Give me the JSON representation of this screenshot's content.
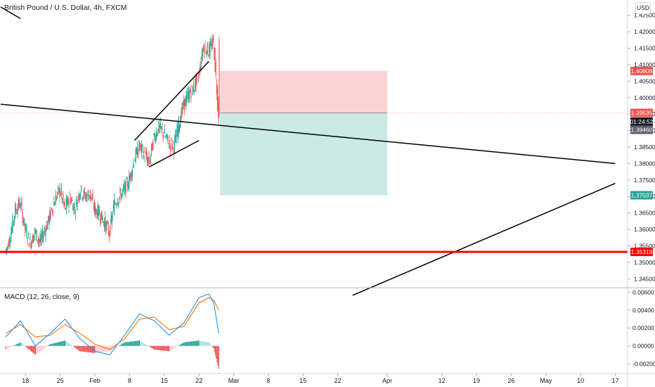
{
  "header": {
    "title": "British Pound / U.S. Dollar, 4h, FXCM",
    "currency_button": "USD",
    "macd_title": "MACD (12, 26, close, 9)"
  },
  "colors": {
    "bull": "#26a69a",
    "bear": "#ef5350",
    "stop_zone": "#fbd3d3",
    "target_zone": "#cbe9e6",
    "support_line": "#ff0000",
    "macd_line": "#2196f3",
    "signal_line": "#ff6d00",
    "entry_badge": "#ef5350",
    "target_badge": "#26a69a",
    "current_badge": "#5d606b",
    "countdown_badge": "#131722"
  },
  "chart_data": [
    {
      "type": "candlestick",
      "title": "British Pound / U.S. Dollar, 4h, FXCM",
      "ylim": [
        1.3425,
        1.4275
      ],
      "y_ticks": [
        "1.34500",
        "1.35000",
        "1.35500",
        "1.36000",
        "1.36500",
        "1.37000",
        "1.37500",
        "1.38000",
        "1.38500",
        "1.39000",
        "1.39500",
        "1.40000",
        "1.40500",
        "1.41000",
        "1.41500",
        "1.42000",
        "1.42500"
      ],
      "y_tick_values": [
        1.345,
        1.35,
        1.355,
        1.36,
        1.365,
        1.37,
        1.375,
        1.38,
        1.385,
        1.39,
        1.395,
        1.4,
        1.405,
        1.41,
        1.415,
        1.42,
        1.425
      ],
      "x_ticks": [
        "18",
        "25",
        "Feb",
        "8",
        "15",
        "22",
        "Mar",
        "8",
        "15",
        "22",
        "Apr",
        "12",
        "19",
        "26",
        "May",
        "10",
        "17"
      ],
      "price_path": [
        [
          "Jan 14",
          1.353
        ],
        [
          "Jan 15",
          1.358
        ],
        [
          "Jan 16",
          1.366
        ],
        [
          "Jan 17",
          1.368
        ],
        [
          "Jan 18",
          1.36
        ],
        [
          "Jan 19",
          1.356
        ],
        [
          "Jan 20",
          1.359
        ],
        [
          "Jan 21",
          1.356
        ],
        [
          "Jan 22",
          1.36
        ],
        [
          "Jan 23",
          1.364
        ],
        [
          "Jan 24",
          1.369
        ],
        [
          "Jan 25",
          1.372
        ],
        [
          "Jan 26",
          1.366
        ],
        [
          "Jan 27",
          1.37
        ],
        [
          "Jan 28",
          1.366
        ],
        [
          "Jan 29",
          1.372
        ],
        [
          "Jan 30",
          1.37
        ],
        [
          "Jan 31",
          1.371
        ],
        [
          "Feb 1",
          1.366
        ],
        [
          "Feb 2",
          1.365
        ],
        [
          "Feb 3",
          1.362
        ],
        [
          "Feb 4",
          1.359
        ],
        [
          "Feb 5",
          1.368
        ],
        [
          "Feb 6",
          1.37
        ],
        [
          "Feb 7",
          1.372
        ],
        [
          "Feb 8",
          1.375
        ],
        [
          "Feb 9",
          1.381
        ],
        [
          "Feb 10",
          1.385
        ],
        [
          "Feb 11",
          1.383
        ],
        [
          "Feb 12",
          1.38
        ],
        [
          "Feb 13",
          1.388
        ],
        [
          "Feb 14",
          1.391
        ],
        [
          "Feb 15",
          1.389
        ],
        [
          "Feb 16",
          1.386
        ],
        [
          "Feb 17",
          1.385
        ],
        [
          "Feb 18",
          1.392
        ],
        [
          "Feb 19",
          1.398
        ],
        [
          "Feb 20",
          1.401
        ],
        [
          "Feb 21",
          1.403
        ],
        [
          "Feb 22",
          1.407
        ],
        [
          "Feb 23",
          1.416
        ],
        [
          "Feb 24",
          1.414
        ],
        [
          "Feb 25",
          1.417
        ],
        [
          "Feb 26",
          1.395
        ]
      ],
      "annotations": {
        "short_position": {
          "entry": 1.39535,
          "stop": 1.40809,
          "target": 1.37037,
          "start": "Feb 26",
          "end": "Apr 1"
        },
        "horizontal_support": 1.35319,
        "price_labels": [
          {
            "text": "1.40809",
            "value": 1.40809,
            "kind": "stop"
          },
          {
            "text": "1.39535",
            "value": 1.39535,
            "kind": "entry"
          },
          {
            "text": "01:24:52",
            "kind": "countdown"
          },
          {
            "text": "1.39460",
            "value": 1.3946,
            "kind": "current"
          },
          {
            "text": "1.37037",
            "value": 1.37037,
            "kind": "target"
          },
          {
            "text": "1.35319",
            "value": 1.35319,
            "kind": "support"
          }
        ],
        "trend_lines": [
          {
            "from": [
              "Jan 13",
              1.4275
            ],
            "to": [
              "Jan 17",
              1.424
            ]
          },
          {
            "from": [
              "Jan 13",
              1.398
            ],
            "to": [
              "May 17",
              1.38
            ]
          },
          {
            "from": [
              "Mar 25",
              1.34
            ],
            "to": [
              "May 17",
              1.374
            ]
          },
          {
            "from": [
              "Feb 9",
              1.387
            ],
            "to": [
              "Feb 24",
              1.411
            ]
          },
          {
            "from": [
              "Feb 12",
              1.379
            ],
            "to": [
              "Feb 22",
              1.387
            ]
          }
        ]
      }
    },
    {
      "type": "macd",
      "title": "MACD (12, 26, close, 9)",
      "ylim": [
        -0.0031,
        0.0065
      ],
      "y_ticks": [
        "0.00600",
        "0.00400",
        "0.00200",
        "0.00000",
        "-0.00200"
      ],
      "y_tick_values": [
        0.006,
        0.004,
        0.002,
        0.0,
        -0.002
      ],
      "series": [
        {
          "name": "MACD",
          "x": [
            "Jan 14",
            "Jan 17",
            "Jan 20",
            "Jan 23",
            "Jan 26",
            "Jan 29",
            "Feb 1",
            "Feb 4",
            "Feb 7",
            "Feb 10",
            "Feb 13",
            "Feb 16",
            "Feb 19",
            "Feb 22",
            "Feb 24",
            "Feb 25",
            "Feb 26"
          ],
          "values": [
            0.001,
            0.0028,
            0.0,
            0.0014,
            0.003,
            0.0008,
            -0.0006,
            -0.001,
            0.0012,
            0.0036,
            0.0028,
            0.0012,
            0.0026,
            0.0054,
            0.0058,
            0.0048,
            0.0014
          ]
        },
        {
          "name": "Signal",
          "x": [
            "Jan 14",
            "Jan 17",
            "Jan 20",
            "Jan 23",
            "Jan 26",
            "Jan 29",
            "Feb 1",
            "Feb 4",
            "Feb 7",
            "Feb 10",
            "Feb 13",
            "Feb 16",
            "Feb 19",
            "Feb 22",
            "Feb 24",
            "Feb 25",
            "Feb 26"
          ],
          "values": [
            0.0014,
            0.0024,
            0.001,
            0.0012,
            0.0024,
            0.0014,
            0.0002,
            -0.0004,
            0.0008,
            0.003,
            0.0032,
            0.0018,
            0.0022,
            0.0048,
            0.0054,
            0.0051,
            0.004
          ]
        }
      ]
    }
  ]
}
